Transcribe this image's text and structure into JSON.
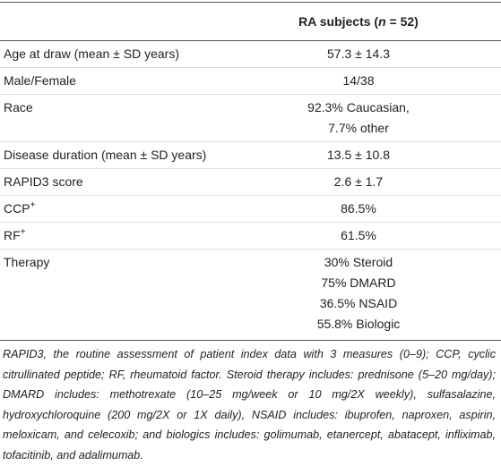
{
  "table": {
    "header": [
      "",
      [
        "RA subjects (",
        "n",
        " = 52)"
      ]
    ],
    "rows": [
      [
        "Age at draw (mean ± SD years)",
        [
          "57.3 ± 14.3"
        ]
      ],
      [
        "Male/Female",
        [
          "14/38"
        ]
      ],
      [
        "Race",
        [
          "92.3% Caucasian,",
          "7.7% other"
        ]
      ],
      [
        "Disease duration (mean ± SD years)",
        [
          "13.5 ± 10.8"
        ]
      ],
      [
        "RAPID3 score",
        [
          "2.6 ± 1.7"
        ]
      ],
      [
        [
          "CCP",
          "+"
        ],
        [
          "86.5%"
        ]
      ],
      [
        [
          "RF",
          "+"
        ],
        [
          "61.5%"
        ]
      ],
      [
        "Therapy",
        [
          "30% Steroid",
          "75% DMARD",
          "36.5% NSAID",
          "55.8% Biologic"
        ]
      ]
    ],
    "footnote": "RAPID3, the routine assessment of patient index data with 3 measures (0–9); CCP, cyclic citrullinated peptide; RF, rheumatoid factor. Steroid therapy includes: prednisone (5–20 mg/day); DMARD includes: methotrexate (10–25 mg/week or 10 mg/2X weekly), sulfasalazine, hydroxychloroquine (200 mg/2X or 1X daily), NSAID includes: ibuprofen, naproxen, aspirin, meloxicam, and celecoxib; and biologics includes: golimumab, etanercept, abatacept, infliximab, tofacitinib, and adalimumab."
  }
}
